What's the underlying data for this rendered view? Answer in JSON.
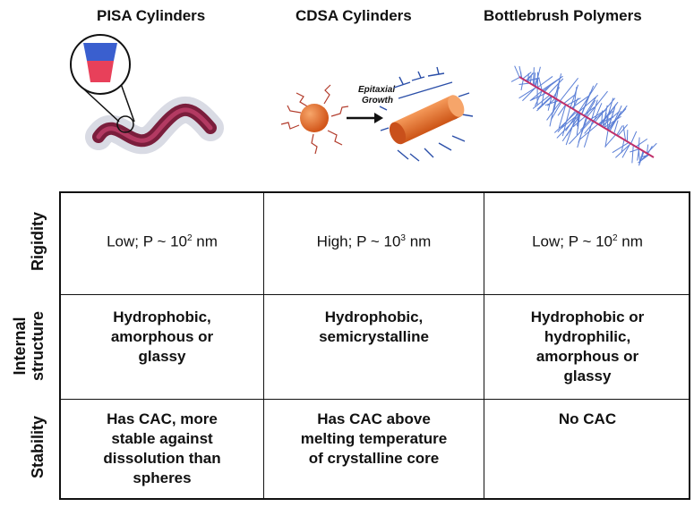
{
  "columns": [
    {
      "title": "PISA Cylinders"
    },
    {
      "title": "CDSA Cylinders"
    },
    {
      "title": "Bottlebrush Polymers"
    }
  ],
  "illustration": {
    "arrow_label_line1": "Epitaxial",
    "arrow_label_line2": "Growth"
  },
  "rows": [
    {
      "label": "Rigidity",
      "cells": [
        {
          "pre": "Low; P ~ 10",
          "sup": "2",
          "post": " nm"
        },
        {
          "pre": "High; P ~ 10",
          "sup": "3",
          "post": " nm"
        },
        {
          "pre": "Low; P ~ 10",
          "sup": "2",
          "post": " nm"
        }
      ]
    },
    {
      "label_line1": "Internal",
      "label_line2": "structure",
      "cells": [
        "Hydrophobic,\namorphous or\nglassy",
        "Hydrophobic,\nsemicrystalline",
        "Hydrophobic or\nhydrophilic,\namorphous or\nglassy"
      ]
    },
    {
      "label": "Stability",
      "cells": [
        "Has CAC, more\nstable against\ndissolution than\nspheres",
        "Has CAC above\nmelting temperature\nof crystalline core",
        "No CAC"
      ]
    }
  ],
  "colors": {
    "pisa_core": "#7a1e3c",
    "blue_block": "#3a5fcf",
    "red_block": "#e8405a",
    "orange_sphere": "#e8732a",
    "brush": "#5b7fd6"
  }
}
